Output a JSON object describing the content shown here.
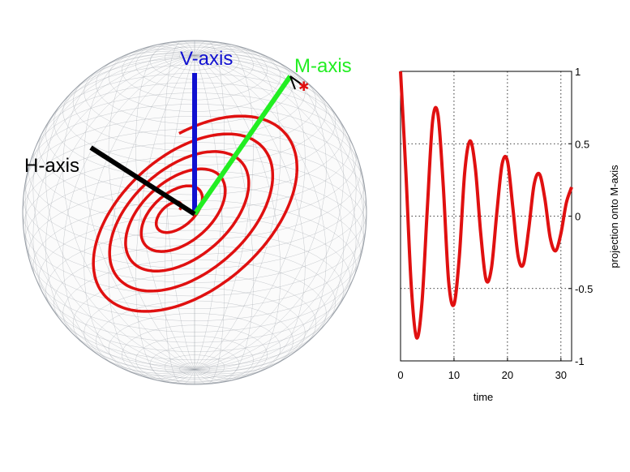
{
  "sphere": {
    "labels": {
      "v_axis": "V-axis",
      "m_axis": "M-axis",
      "h_axis": "H-axis"
    },
    "colors": {
      "v_axis": "#1010d0",
      "m_axis": "#22ee22",
      "h_axis": "#000000",
      "trajectory": "#e01010",
      "mesh": "#9aa0a8"
    }
  },
  "chart_data": {
    "type": "line",
    "x": [
      0,
      1,
      2,
      3,
      4,
      5,
      6,
      7,
      8,
      9,
      10,
      11,
      12,
      13,
      14,
      15,
      16,
      17,
      18,
      19,
      20,
      21,
      22,
      23,
      24,
      25,
      26,
      27,
      28,
      29,
      30,
      31,
      32
    ],
    "series": [
      {
        "values": [
          1.0,
          0.3,
          -0.48,
          -0.84,
          -0.6,
          0.05,
          0.66,
          0.7,
          0.2,
          -0.45,
          -0.61,
          -0.28,
          0.3,
          0.52,
          0.33,
          -0.12,
          -0.44,
          -0.36,
          0.02,
          0.36,
          0.38,
          0.06,
          -0.28,
          -0.33,
          -0.08,
          0.22,
          0.29,
          0.12,
          -0.15,
          -0.24,
          -0.12,
          0.09,
          0.2
        ],
        "color": "#e01010"
      }
    ],
    "xlabel": "time",
    "ylabel": "projection onto M-axis",
    "xlim": [
      0,
      32
    ],
    "ylim": [
      -1,
      1
    ],
    "xticks": [
      "0",
      "10",
      "20",
      "30"
    ],
    "yticks": [
      "1",
      "0.5",
      "0",
      "-0.5",
      "-1"
    ],
    "grid": true
  }
}
